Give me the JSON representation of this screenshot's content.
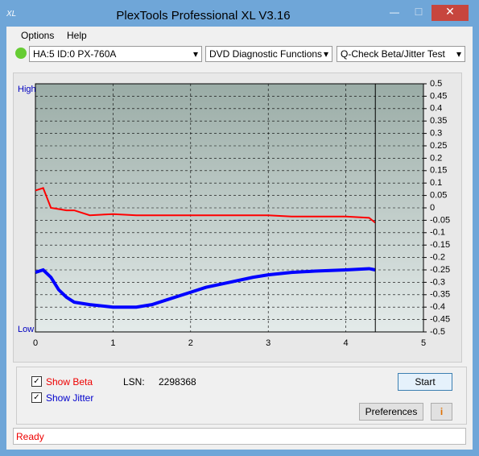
{
  "window": {
    "title": "PlexTools Professional XL V3.16"
  },
  "menu": [
    "Options",
    "Help"
  ],
  "toolbar": {
    "drive": "HA:5 ID:0  PX-760A",
    "function": "DVD Diagnostic Functions",
    "test": "Q-Check Beta/Jitter Test"
  },
  "chart_data": {
    "type": "line",
    "y_high_label": "High",
    "y_low_label": "Low",
    "x": [
      0,
      0.1,
      0.2,
      0.3,
      0.4,
      0.5,
      0.7,
      1.0,
      1.3,
      1.5,
      1.7,
      2.0,
      2.2,
      2.5,
      2.8,
      3.0,
      3.3,
      3.6,
      4.0,
      4.3,
      4.38
    ],
    "series": [
      {
        "color": "#ff0000",
        "values": [
          0.07,
          0.08,
          0.0,
          -0.005,
          -0.01,
          -0.01,
          -0.03,
          -0.025,
          -0.03,
          -0.03,
          -0.03,
          -0.03,
          -0.03,
          -0.03,
          -0.03,
          -0.03,
          -0.035,
          -0.035,
          -0.035,
          -0.04,
          -0.06
        ]
      },
      {
        "color": "#0000ff",
        "values": [
          -0.26,
          -0.25,
          -0.28,
          -0.33,
          -0.36,
          -0.38,
          -0.39,
          -0.4,
          -0.4,
          -0.39,
          -0.37,
          -0.34,
          -0.32,
          -0.3,
          -0.28,
          -0.27,
          -0.26,
          -0.255,
          -0.25,
          -0.245,
          -0.25
        ]
      }
    ],
    "end_marker_x": 4.38,
    "xlim": [
      0,
      5
    ],
    "xticks": [
      0,
      1,
      2,
      3,
      4,
      5
    ],
    "ylim": [
      -0.5,
      0.5
    ],
    "yticks": [
      0.5,
      0.45,
      0.4,
      0.35,
      0.3,
      0.25,
      0.2,
      0.15,
      0.1,
      0.05,
      0,
      -0.05,
      -0.1,
      -0.15,
      -0.2,
      -0.25,
      -0.3,
      -0.35,
      -0.4,
      -0.45,
      -0.5
    ],
    "grid": true
  },
  "controls": {
    "show_beta": "Show Beta",
    "show_jitter": "Show Jitter",
    "lsn_label": "LSN:",
    "lsn_value": "2298368",
    "start": "Start",
    "preferences": "Preferences"
  },
  "status": "Ready"
}
